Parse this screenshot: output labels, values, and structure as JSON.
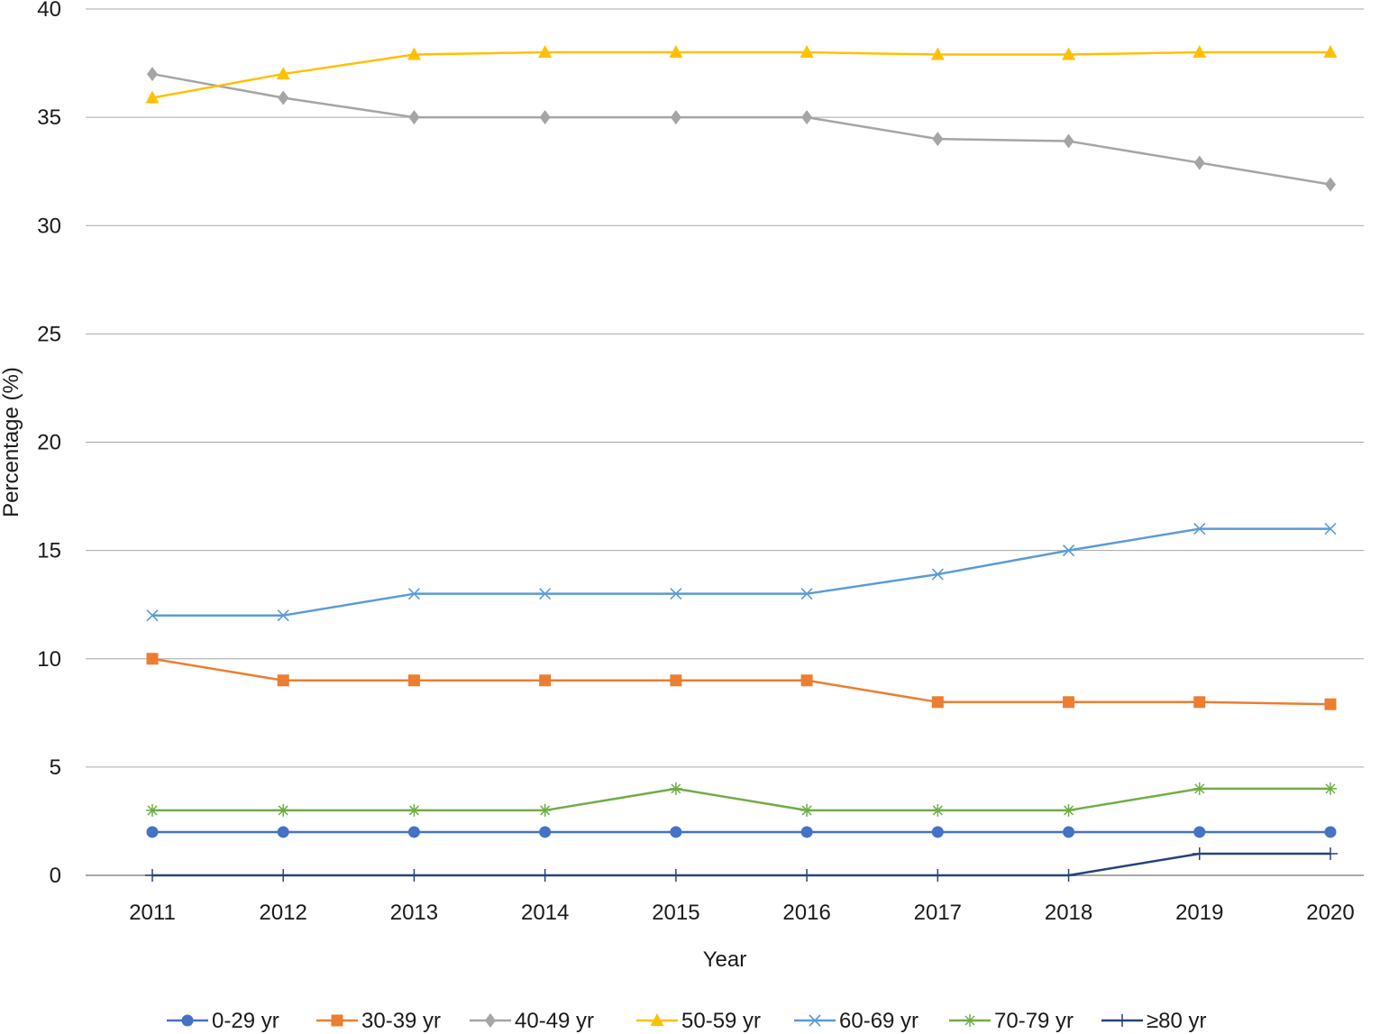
{
  "chart_data": {
    "type": "line",
    "title": "",
    "xlabel": "Year",
    "ylabel": "Percentage (%)",
    "ylim": [
      0,
      40
    ],
    "yticks": [
      0,
      5,
      10,
      15,
      20,
      25,
      30,
      35,
      40
    ],
    "grid": "horizontal",
    "legend_position": "bottom",
    "categories": [
      "2011",
      "2012",
      "2013",
      "2014",
      "2015",
      "2016",
      "2017",
      "2018",
      "2019",
      "2020"
    ],
    "series": [
      {
        "name": "0-29 yr",
        "color": "#4472C4",
        "marker": "circle",
        "values": [
          2,
          2,
          2,
          2,
          2,
          2,
          2,
          2,
          2,
          2
        ]
      },
      {
        "name": "30-39 yr",
        "color": "#ED7D31",
        "marker": "square",
        "values": [
          10,
          9,
          9,
          9,
          9,
          9,
          8,
          8,
          8,
          7.9
        ]
      },
      {
        "name": "40-49 yr",
        "color": "#A5A5A5",
        "marker": "diamond",
        "values": [
          37,
          35.9,
          35,
          35,
          35,
          35,
          34,
          33.9,
          32.9,
          31.9
        ]
      },
      {
        "name": "50-59 yr",
        "color": "#FFC000",
        "marker": "triangle",
        "values": [
          35.9,
          37,
          37.9,
          38,
          38,
          38,
          37.9,
          37.9,
          38,
          38
        ]
      },
      {
        "name": "60-69 yr",
        "color": "#5B9BD5",
        "marker": "x",
        "values": [
          12,
          12,
          13,
          13,
          13,
          13,
          13.9,
          15,
          16,
          16
        ]
      },
      {
        "name": "70-79 yr",
        "color": "#70AD47",
        "marker": "star",
        "values": [
          3,
          3,
          3,
          3,
          4,
          3,
          3,
          3,
          4,
          4
        ]
      },
      {
        "name": "≥80 yr",
        "color": "#264478",
        "marker": "plus",
        "values": [
          0,
          0,
          0,
          0,
          0,
          0,
          0,
          0,
          1,
          1
        ]
      }
    ]
  }
}
